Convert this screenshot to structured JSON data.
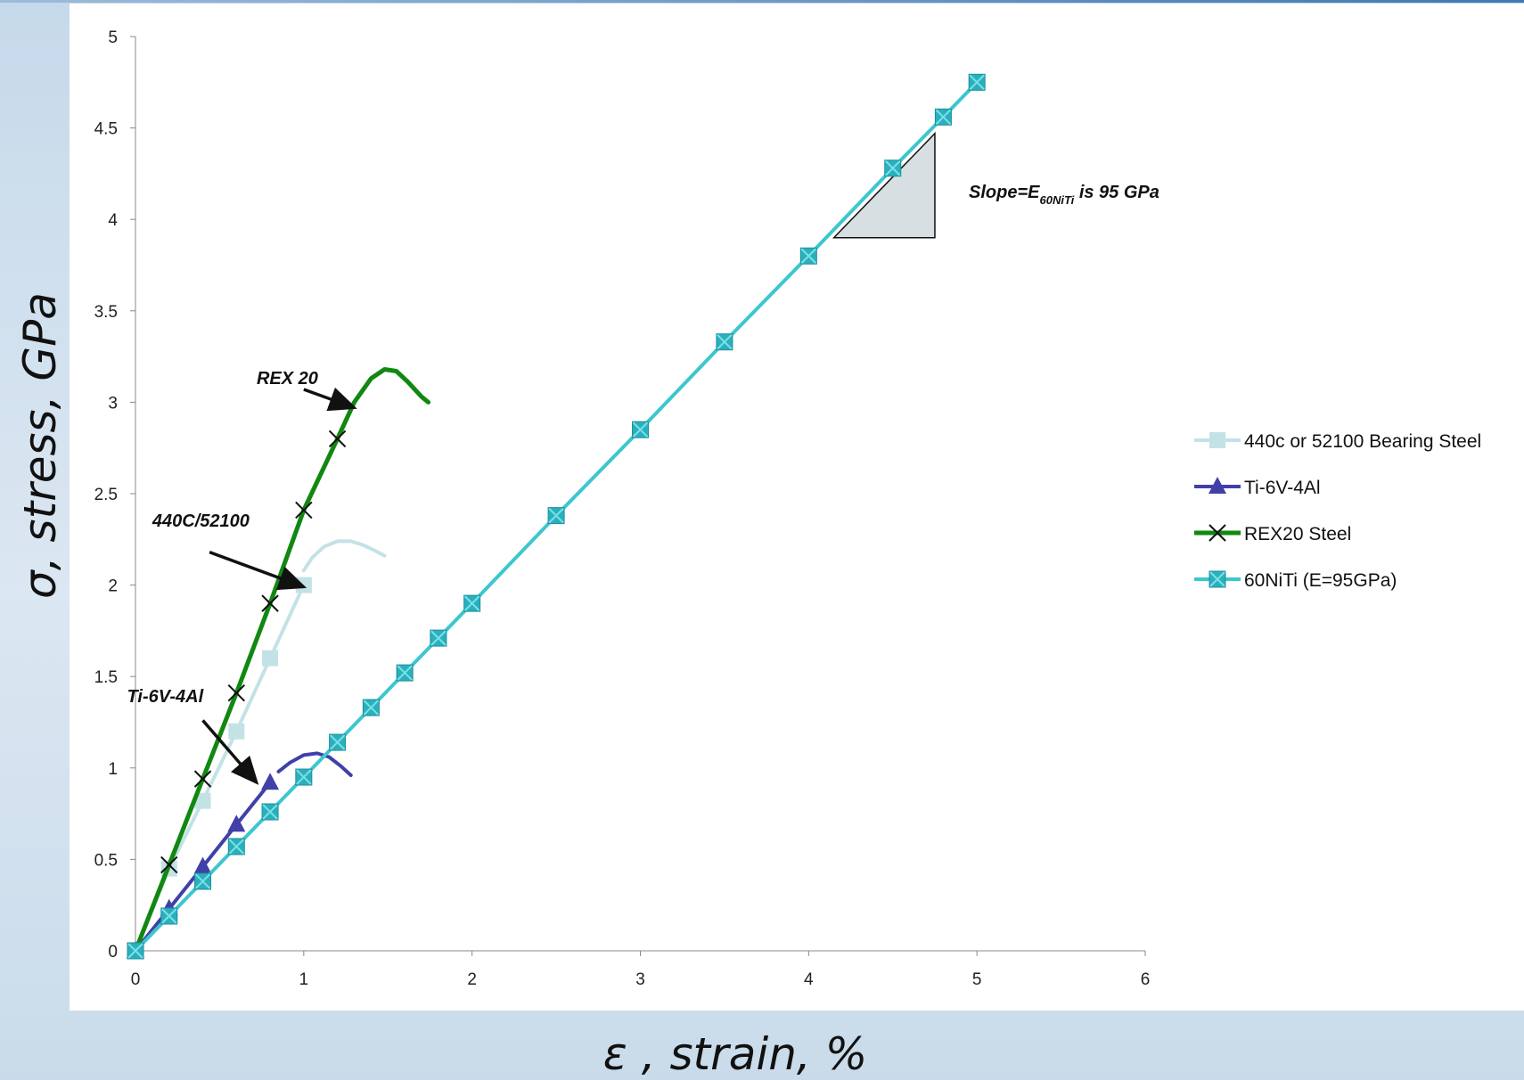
{
  "chart_data": {
    "type": "line",
    "xlabel": "ε , strain, %",
    "ylabel": "σ, stress, GPa",
    "xlim": [
      0,
      6
    ],
    "ylim": [
      0,
      5
    ],
    "x_ticks": [
      "0",
      "1",
      "2",
      "3",
      "4",
      "5",
      "6"
    ],
    "y_ticks": [
      "0",
      "0.5",
      "1",
      "1.5",
      "2",
      "2.5",
      "3",
      "3.5",
      "4",
      "4.5",
      "5"
    ],
    "grid": false,
    "legend_position": "right",
    "series": [
      {
        "name": "440c or 52100 Bearing Steel",
        "color": "#c3e2e6",
        "marker": "square",
        "x": [
          0,
          0.2,
          0.4,
          0.6,
          0.8,
          1.0
        ],
        "y": [
          0,
          0.45,
          0.82,
          1.2,
          1.6,
          2.0
        ],
        "tail": {
          "x": [
            1.0,
            1.05,
            1.12,
            1.2,
            1.28,
            1.35,
            1.42,
            1.48
          ],
          "y": [
            2.08,
            2.15,
            2.21,
            2.24,
            2.24,
            2.22,
            2.19,
            2.16
          ]
        }
      },
      {
        "name": "Ti-6V-4Al",
        "color": "#4040a8",
        "marker": "triangle",
        "x": [
          0,
          0.2,
          0.4,
          0.6,
          0.8
        ],
        "y": [
          0,
          0.23,
          0.46,
          0.69,
          0.92
        ],
        "tail": {
          "x": [
            0.85,
            0.92,
            1.0,
            1.08,
            1.15,
            1.22,
            1.28
          ],
          "y": [
            0.98,
            1.03,
            1.07,
            1.08,
            1.06,
            1.01,
            0.96
          ]
        }
      },
      {
        "name": "REX20 Steel",
        "color": "#118811",
        "marker": "x",
        "x": [
          0,
          0.2,
          0.4,
          0.6,
          0.8,
          1.0,
          1.2
        ],
        "y": [
          0,
          0.47,
          0.94,
          1.41,
          1.9,
          2.41,
          2.8
        ],
        "tail": {
          "x": [
            1.2,
            1.3,
            1.4,
            1.48,
            1.55,
            1.62,
            1.7,
            1.74
          ],
          "y": [
            2.8,
            3.0,
            3.13,
            3.18,
            3.17,
            3.11,
            3.03,
            3.0
          ]
        }
      },
      {
        "name": "60NiTi (E=95GPa)",
        "color": "#3cc7d0",
        "marker_color": "#2ab0bd",
        "marker": "square-x",
        "x": [
          0,
          0.2,
          0.4,
          0.6,
          0.8,
          1.0,
          1.2,
          1.4,
          1.6,
          1.8,
          2.0,
          2.5,
          3.0,
          3.5,
          4.0,
          4.5,
          4.8,
          5.0
        ],
        "y": [
          0,
          0.19,
          0.38,
          0.57,
          0.76,
          0.95,
          1.14,
          1.33,
          1.52,
          1.71,
          1.9,
          2.38,
          2.85,
          3.33,
          3.8,
          4.28,
          4.56,
          4.75
        ]
      }
    ],
    "annotations": [
      {
        "text": "REX 20",
        "x": 0.72,
        "y": 3.1,
        "arrow_to": [
          1.3,
          2.97
        ]
      },
      {
        "text": "440C/52100",
        "x": 0.1,
        "y": 2.32,
        "arrow_to": [
          1.0,
          1.99
        ]
      },
      {
        "text": "Ti-6V-4Al",
        "x": -0.05,
        "y": 1.36,
        "arrow_to": [
          0.72,
          0.92
        ]
      }
    ],
    "slope_label": {
      "prefix": "Slope=E",
      "subscript": "60NiTi",
      "suffix": " is 95 GPa"
    },
    "slope_triangle": {
      "x": [
        4.15,
        4.75,
        4.75
      ],
      "y": [
        3.9,
        3.9,
        4.47
      ]
    }
  }
}
